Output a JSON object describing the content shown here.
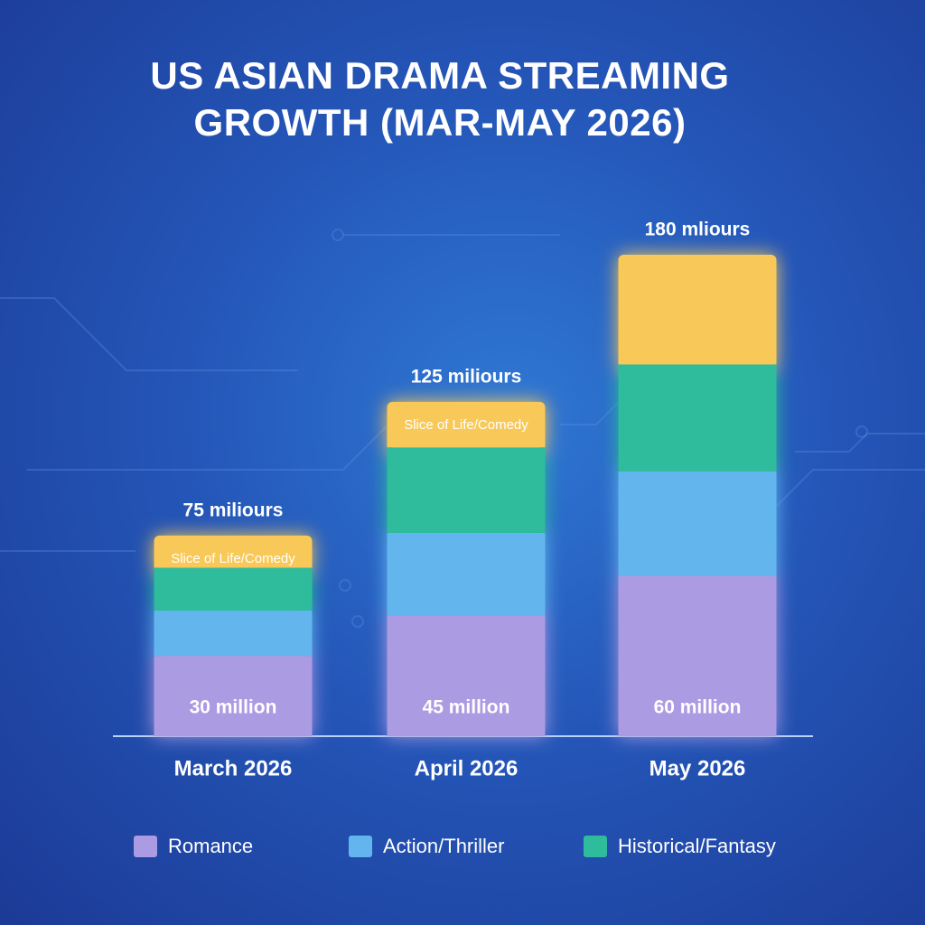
{
  "chart_data": {
    "type": "stacked_bar",
    "title": "US ASIAN DRAMA STREAMING GROWTH (MAR-MAY 2026)",
    "categories": [
      "March 2026",
      "April 2026",
      "May 2026"
    ],
    "series": [
      {
        "name": "Romance",
        "color": "#ab9be2",
        "values": [
          30,
          45,
          60
        ],
        "value_labels": [
          "30 million",
          "45 million",
          "60 million"
        ],
        "legend": true
      },
      {
        "name": "Action/Thriller",
        "color": "#63b5ee",
        "values": [
          17,
          31,
          39
        ],
        "legend": true
      },
      {
        "name": "Historical/Fantasy",
        "color": "#2fbc9c",
        "values": [
          16,
          32,
          40
        ],
        "legend": true
      },
      {
        "name": "Slice of Life/Comedy",
        "color": "#f8c958",
        "values": [
          12,
          17,
          41
        ],
        "legend": false,
        "in_bar_label": [
          true,
          true,
          false
        ]
      }
    ],
    "totals": [
      75,
      125,
      180
    ],
    "total_labels": [
      "75 miliours",
      "125 miliours",
      "180 mliours"
    ]
  }
}
